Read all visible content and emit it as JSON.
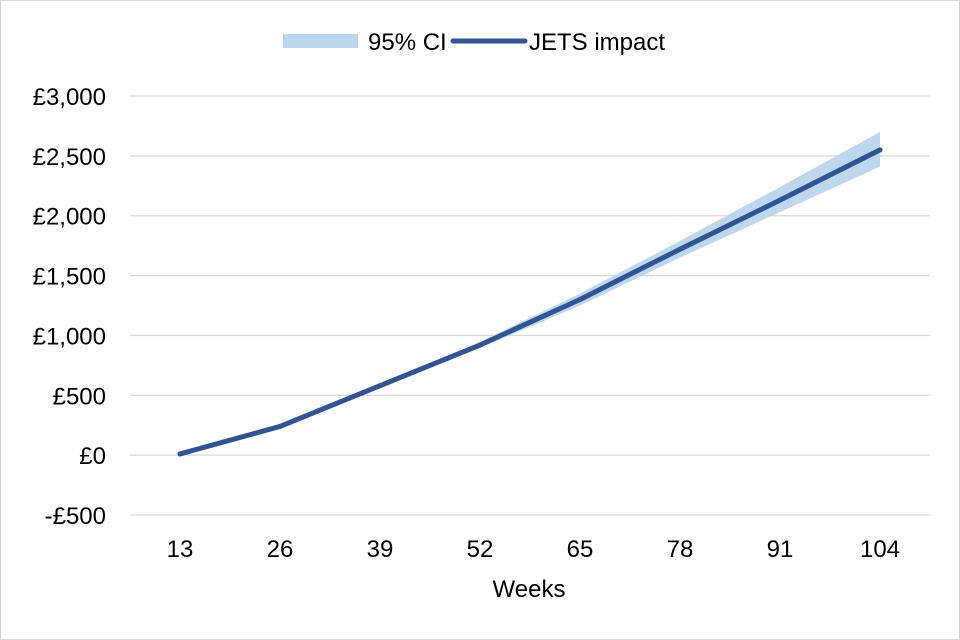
{
  "chart_data": {
    "type": "line",
    "title": "",
    "xlabel": "Weeks",
    "ylabel": "",
    "x": [
      13,
      26,
      39,
      52,
      65,
      78,
      91,
      104
    ],
    "x_tick_labels": [
      "13",
      "26",
      "39",
      "52",
      "65",
      "78",
      "91",
      "104"
    ],
    "ylim": [
      -500,
      3000
    ],
    "y_ticks": [
      -500,
      0,
      500,
      1000,
      1500,
      2000,
      2500,
      3000
    ],
    "y_tick_labels": [
      "-£500",
      "£0",
      "£500",
      "£1,000",
      "£1,500",
      "£2,000",
      "£2,500",
      "£3,000"
    ],
    "grid": true,
    "legend_position": "top",
    "series": [
      {
        "name": "JETS impact",
        "kind": "line",
        "color": "#2F5597",
        "values": [
          10,
          240,
          580,
          920,
          1300,
          1720,
          2130,
          2550
        ]
      },
      {
        "name": "95% CI",
        "kind": "band",
        "color": "#BDD7EE",
        "lower": [
          5,
          230,
          565,
          895,
          1250,
          1650,
          2030,
          2410
        ],
        "upper": [
          15,
          250,
          595,
          945,
          1350,
          1790,
          2240,
          2700
        ]
      }
    ]
  }
}
